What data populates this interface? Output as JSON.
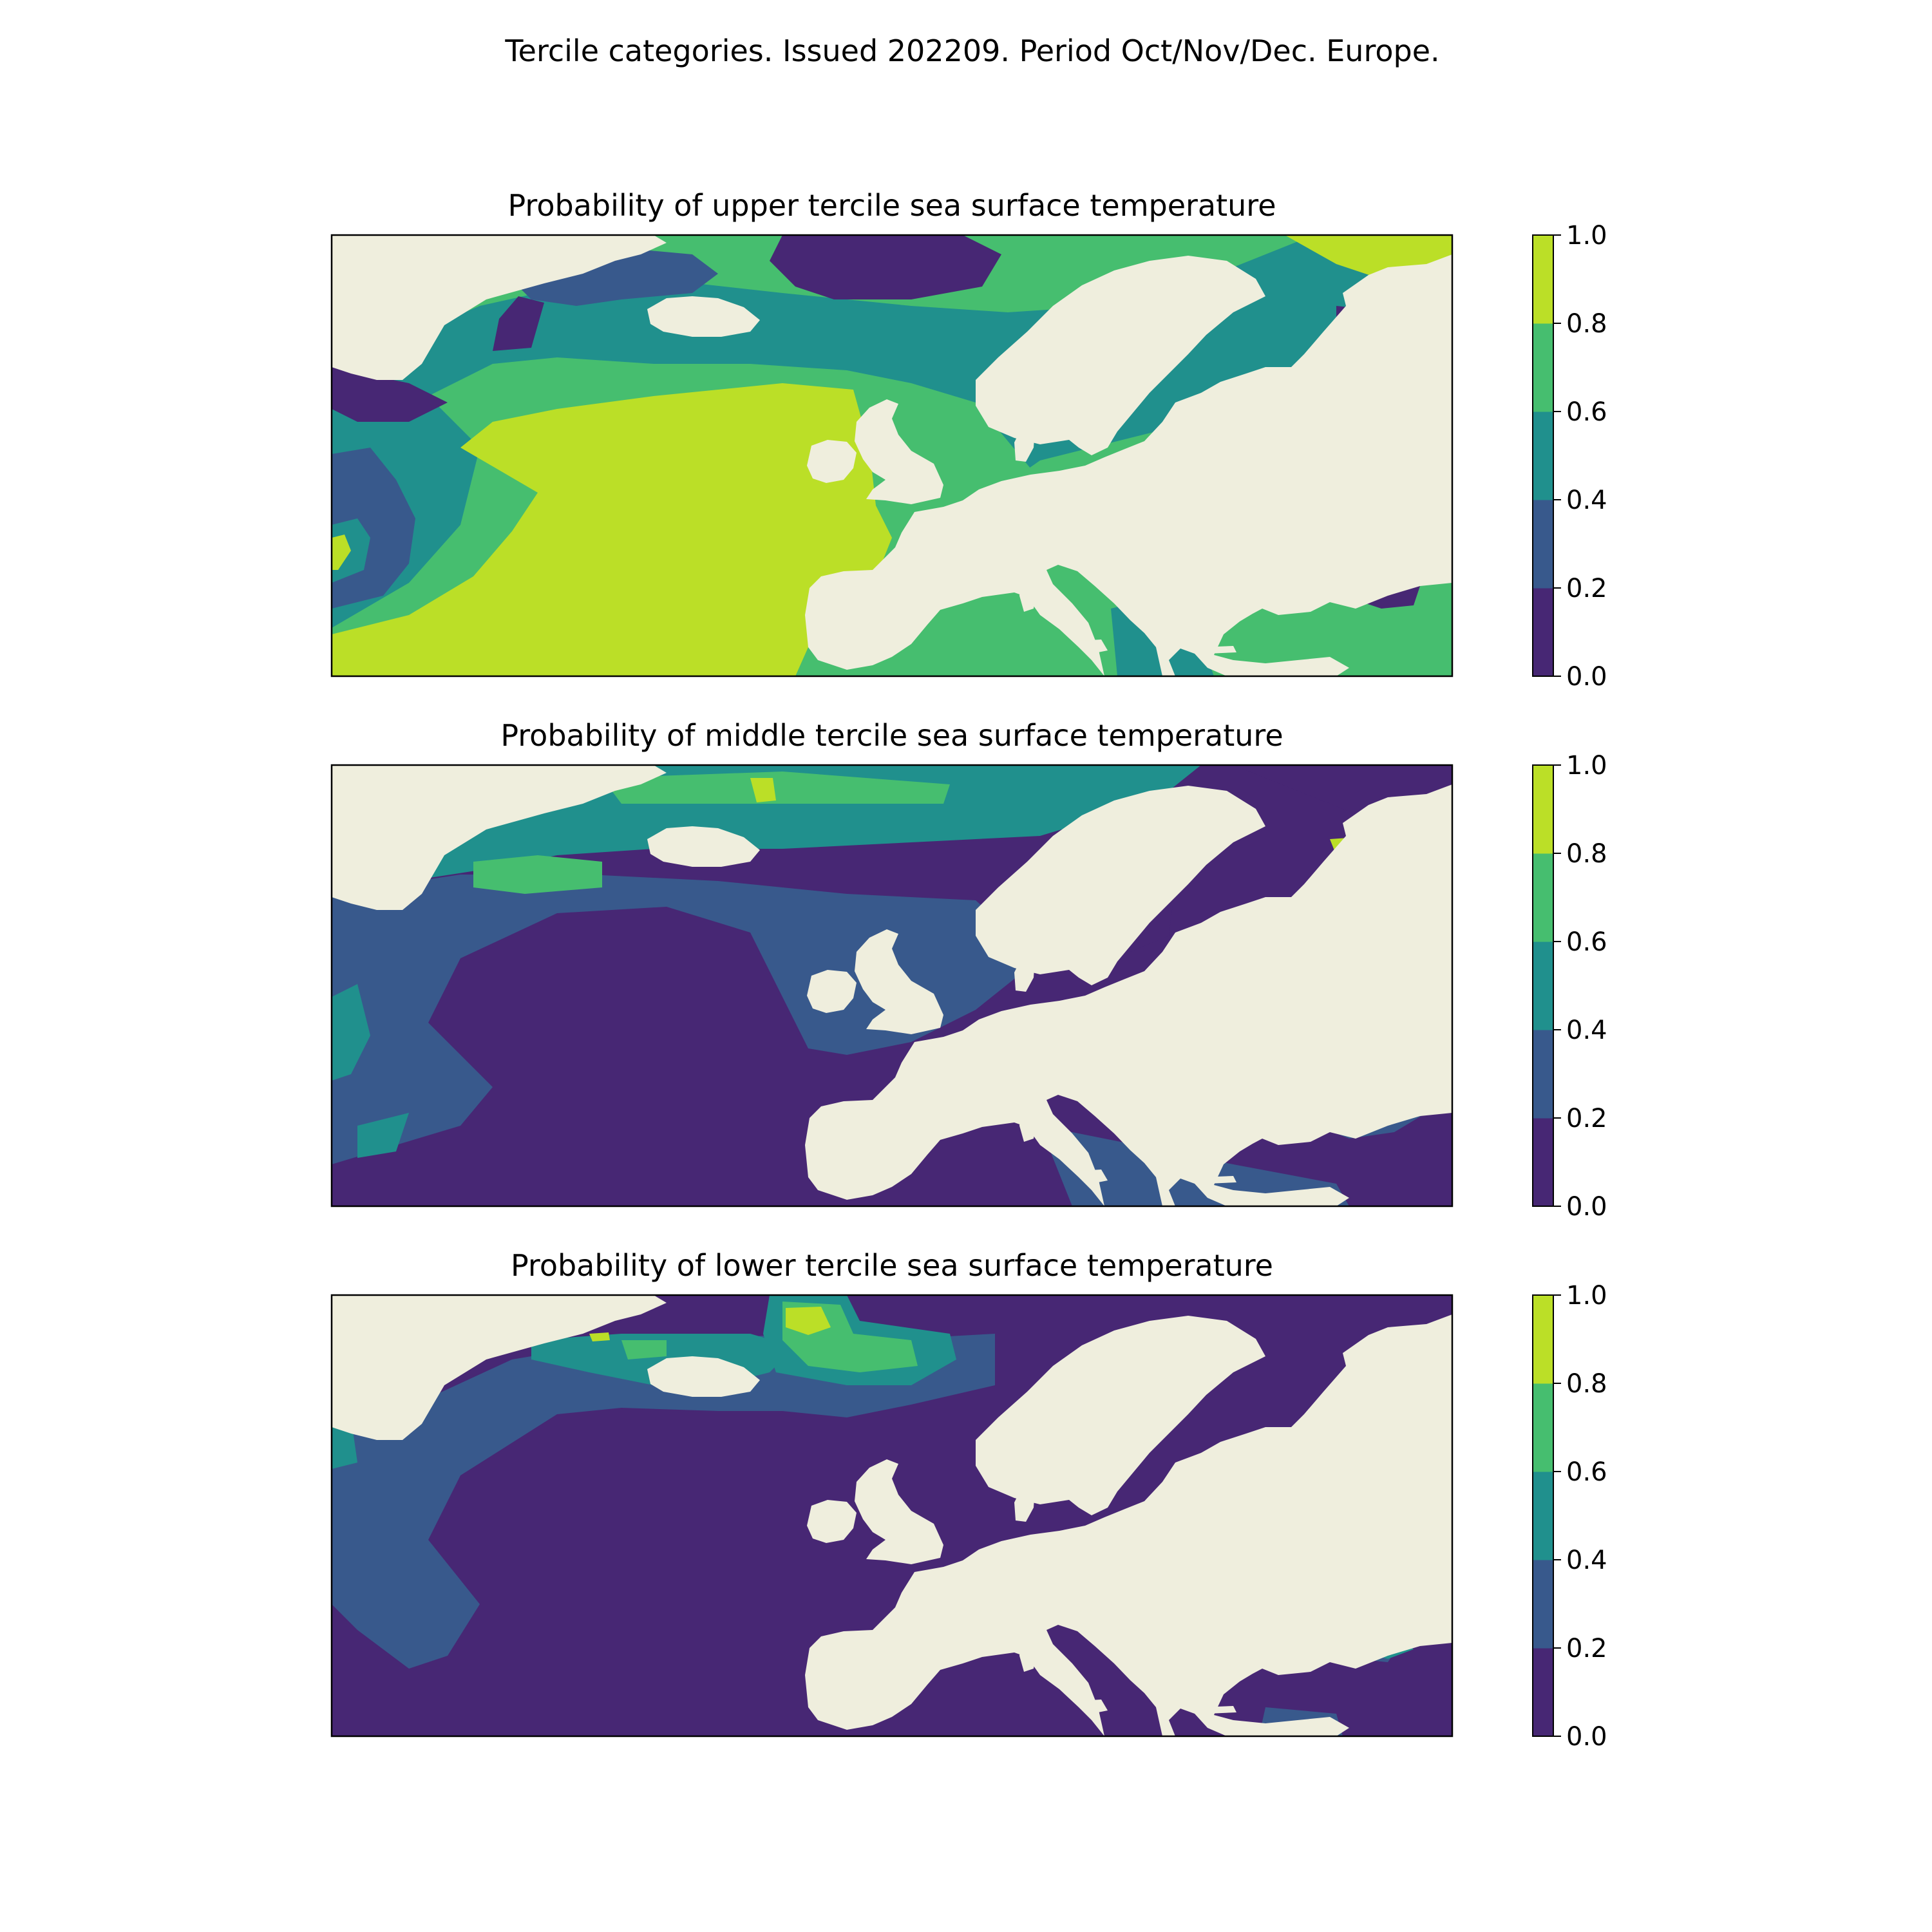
{
  "title": "Tercile categories. Issued 202209. Period Oct/Nov/Dec. Europe.",
  "colors": {
    "land": "#EFEEDD",
    "frame": "#000000",
    "levels": [
      "#472774",
      "#38598C",
      "#20908D",
      "#46BE6F",
      "#BBDF27"
    ]
  },
  "colorbar": {
    "ticks": [
      "0.0",
      "0.2",
      "0.4",
      "0.6",
      "0.8",
      "1.0"
    ]
  },
  "panels": [
    {
      "title": "Probability of upper tercile sea surface temperature",
      "ocean_regions": [
        {
          "region": "central-north-atlantic",
          "level": 4
        },
        {
          "region": "bay-of-biscay",
          "level": 4
        },
        {
          "region": "barents-sea",
          "level": 4
        },
        {
          "region": "north-sea",
          "level": 3
        },
        {
          "region": "baltic-sea",
          "level": 3
        },
        {
          "region": "mediterranean",
          "level": 3
        },
        {
          "region": "black-sea-west",
          "level": 3
        },
        {
          "region": "west-atlantic-margin",
          "level": 2
        },
        {
          "region": "aegean-sea",
          "level": 2
        },
        {
          "region": "irminger-sea",
          "level": 1
        },
        {
          "region": "norwegian-sea",
          "level": 0
        },
        {
          "region": "labrador-coast",
          "level": 0
        },
        {
          "region": "black-sea-east",
          "level": 0
        },
        {
          "region": "caspian-sea",
          "level": 0
        }
      ]
    },
    {
      "title": "Probability of middle tercile sea surface temperature",
      "ocean_regions": [
        {
          "region": "central-north-atlantic",
          "level": 0
        },
        {
          "region": "mediterranean",
          "level": 0
        },
        {
          "region": "baltic-sea",
          "level": 0
        },
        {
          "region": "barents-sea",
          "level": 0
        },
        {
          "region": "west-atlantic-margin",
          "level": 1
        },
        {
          "region": "north-sea",
          "level": 1
        },
        {
          "region": "black-sea",
          "level": 1
        },
        {
          "region": "irminger-sea",
          "level": 2
        },
        {
          "region": "norwegian-sea",
          "level": 2
        },
        {
          "region": "subpolar-atlantic",
          "level": 3
        },
        {
          "region": "white-sea",
          "level": 4
        },
        {
          "region": "sea-of-azov",
          "level": 4
        }
      ]
    },
    {
      "title": "Probability of lower tercile sea surface temperature",
      "ocean_regions": [
        {
          "region": "central-north-atlantic",
          "level": 0
        },
        {
          "region": "mediterranean",
          "level": 0
        },
        {
          "region": "north-sea",
          "level": 0
        },
        {
          "region": "baltic-sea",
          "level": 0
        },
        {
          "region": "barents-sea",
          "level": 0
        },
        {
          "region": "west-atlantic-margin",
          "level": 1
        },
        {
          "region": "iceland-sea",
          "level": 1
        },
        {
          "region": "greenland-coast",
          "level": 3
        },
        {
          "region": "jan-mayen",
          "level": 4
        },
        {
          "region": "black-sea-east",
          "level": 2
        },
        {
          "region": "caspian-sea",
          "level": 0
        }
      ]
    }
  ]
}
